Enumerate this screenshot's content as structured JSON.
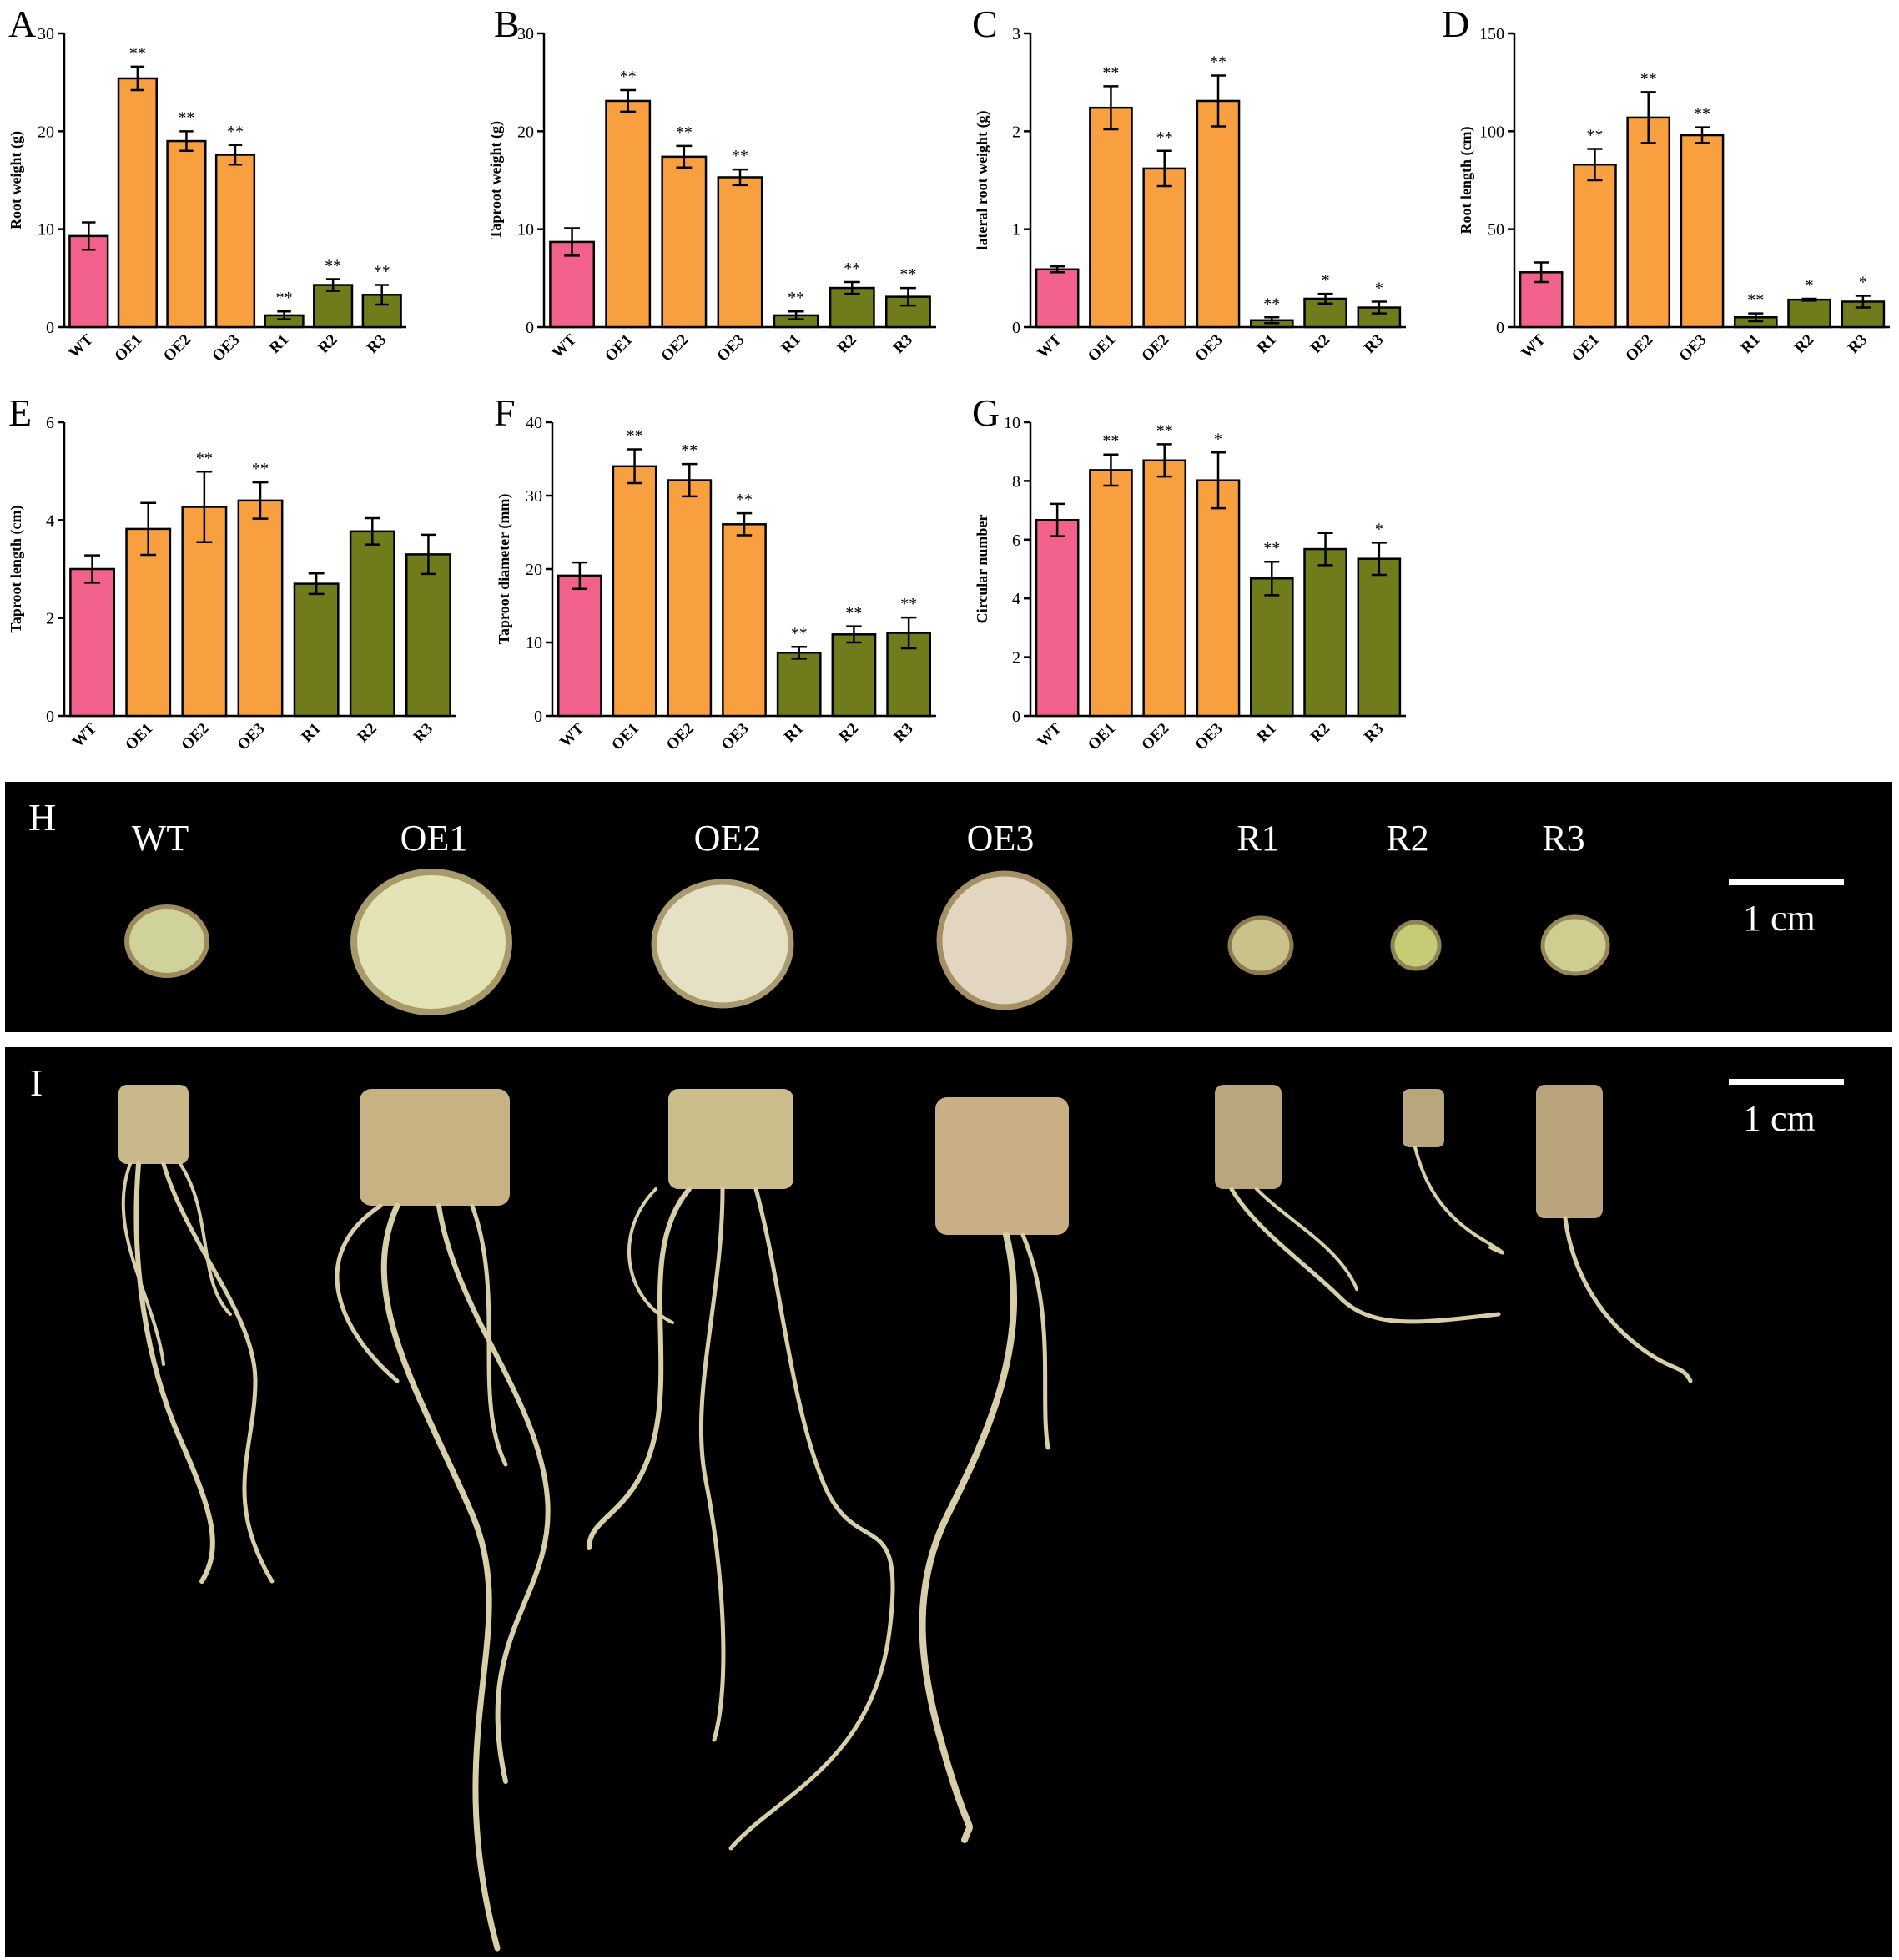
{
  "colors": {
    "wt": "#f2608c",
    "oe": "#f8a040",
    "r": "#707b1c",
    "error": "#000000",
    "axis": "#000000"
  },
  "chart_data": [
    {
      "panel": "A",
      "type": "bar",
      "ylabel": "Root weight (g)",
      "ylim": [
        0,
        30
      ],
      "yticks": [
        0,
        10,
        20,
        30
      ],
      "categories": [
        "WT",
        "OE1",
        "OE2",
        "OE3",
        "R1",
        "R2",
        "R3"
      ],
      "values": [
        9.3,
        25.4,
        19.0,
        17.6,
        1.2,
        4.3,
        3.3
      ],
      "errors": [
        1.4,
        1.2,
        1.0,
        1.0,
        0.4,
        0.6,
        1.0
      ],
      "significance": [
        "",
        "**",
        "**",
        "**",
        "**",
        "**",
        "**"
      ],
      "grid": false
    },
    {
      "panel": "B",
      "type": "bar",
      "ylabel": "Taproot weight (g)",
      "ylim": [
        0,
        30
      ],
      "yticks": [
        0,
        10,
        20,
        30
      ],
      "categories": [
        "WT",
        "OE1",
        "OE2",
        "OE3",
        "R1",
        "R2",
        "R3"
      ],
      "values": [
        8.7,
        23.1,
        17.4,
        15.3,
        1.2,
        4.0,
        3.1
      ],
      "errors": [
        1.4,
        1.1,
        1.1,
        0.8,
        0.4,
        0.6,
        0.9
      ],
      "significance": [
        "",
        "**",
        "**",
        "**",
        "**",
        "**",
        "**"
      ],
      "grid": false
    },
    {
      "panel": "C",
      "type": "bar",
      "ylabel": "lateral root weight (g)",
      "ylim": [
        0,
        3
      ],
      "yticks": [
        0,
        1,
        2,
        3
      ],
      "categories": [
        "WT",
        "OE1",
        "OE2",
        "OE3",
        "R1",
        "R2",
        "R3"
      ],
      "values": [
        0.59,
        2.24,
        1.62,
        2.31,
        0.07,
        0.29,
        0.2
      ],
      "errors": [
        0.03,
        0.22,
        0.18,
        0.26,
        0.03,
        0.05,
        0.06
      ],
      "significance": [
        "",
        "**",
        "**",
        "**",
        "**",
        "*",
        "*"
      ],
      "grid": false
    },
    {
      "panel": "D",
      "type": "bar",
      "ylabel": "Root length (cm)",
      "ylim": [
        0,
        150
      ],
      "yticks": [
        0,
        50,
        100,
        150
      ],
      "categories": [
        "WT",
        "OE1",
        "OE2",
        "OE3",
        "R1",
        "R2",
        "R3"
      ],
      "values": [
        28,
        83,
        107,
        98,
        5,
        14,
        13
      ],
      "errors": [
        5,
        8,
        13,
        4,
        2,
        0.5,
        3
      ],
      "significance": [
        "",
        "**",
        "**",
        "**",
        "**",
        "*",
        "*"
      ],
      "grid": false
    },
    {
      "panel": "E",
      "type": "bar",
      "ylabel": "Taproot length (cm)",
      "ylim": [
        0,
        6
      ],
      "yticks": [
        0,
        2,
        4,
        6
      ],
      "categories": [
        "WT",
        "OE1",
        "OE2",
        "OE3",
        "R1",
        "R2",
        "R3"
      ],
      "values": [
        3.0,
        3.82,
        4.27,
        4.4,
        2.7,
        3.77,
        3.3
      ],
      "errors": [
        0.28,
        0.53,
        0.72,
        0.37,
        0.21,
        0.27,
        0.4
      ],
      "significance": [
        "",
        "",
        "**",
        "**",
        "",
        "",
        ""
      ],
      "grid": false
    },
    {
      "panel": "F",
      "type": "bar",
      "ylabel": "Taproot diameter (mm)",
      "ylim": [
        0,
        40
      ],
      "yticks": [
        0,
        10,
        20,
        30,
        40
      ],
      "categories": [
        "WT",
        "OE1",
        "OE2",
        "OE3",
        "R1",
        "R2",
        "R3"
      ],
      "values": [
        19.1,
        34.0,
        32.1,
        26.1,
        8.6,
        11.1,
        11.3
      ],
      "errors": [
        1.8,
        2.3,
        2.2,
        1.5,
        0.8,
        1.1,
        2.1
      ],
      "significance": [
        "",
        "**",
        "**",
        "**",
        "**",
        "**",
        "**"
      ],
      "grid": false
    },
    {
      "panel": "G",
      "type": "bar",
      "ylabel": "Circular number",
      "ylim": [
        0,
        10
      ],
      "yticks": [
        0,
        2,
        4,
        6,
        8,
        10
      ],
      "categories": [
        "WT",
        "OE1",
        "OE2",
        "OE3",
        "R1",
        "R2",
        "R3"
      ],
      "values": [
        6.67,
        8.37,
        8.7,
        8.02,
        4.68,
        5.68,
        5.35
      ],
      "errors": [
        0.55,
        0.53,
        0.55,
        0.95,
        0.57,
        0.55,
        0.55
      ],
      "significance": [
        "",
        "**",
        "**",
        "*",
        "**",
        "",
        "*"
      ],
      "grid": false
    }
  ],
  "photo_h": {
    "letter": "H",
    "labels": [
      "WT",
      "OE1",
      "OE2",
      "OE3",
      "R1",
      "R2",
      "R3"
    ],
    "scale": "1 cm"
  },
  "photo_i": {
    "letter": "I",
    "scale": "1 cm"
  }
}
